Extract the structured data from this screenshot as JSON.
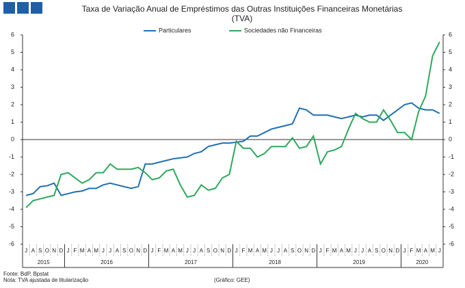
{
  "chart_data": {
    "type": "line",
    "title": "Taxa de Variação Anual de Empréstimos das Outras Instituições Financeiras Monetárias",
    "subtitle": "(TVA)",
    "categories": [
      "J",
      "A",
      "S",
      "O",
      "N",
      "D",
      "J",
      "F",
      "M",
      "A",
      "M",
      "J",
      "J",
      "A",
      "S",
      "O",
      "N",
      "D",
      "J",
      "F",
      "M",
      "A",
      "M",
      "J",
      "J",
      "A",
      "S",
      "O",
      "N",
      "D",
      "J",
      "F",
      "M",
      "A",
      "M",
      "J",
      "J",
      "A",
      "S",
      "O",
      "N",
      "D",
      "J",
      "F",
      "M",
      "A",
      "M",
      "J",
      "J",
      "A",
      "S",
      "O",
      "N",
      "D",
      "J",
      "F",
      "M",
      "A",
      "M",
      "J"
    ],
    "years": [
      "2015",
      "2016",
      "2017",
      "2018",
      "2019",
      "2020"
    ],
    "series": [
      {
        "name": "Particulares",
        "color": "#1f6fb2",
        "values": [
          -3.2,
          -3.1,
          -2.7,
          -2.65,
          -2.5,
          -3.2,
          -3.1,
          -3.0,
          -2.95,
          -2.8,
          -2.8,
          -2.6,
          -2.5,
          -2.6,
          -2.7,
          -2.8,
          -2.7,
          -1.4,
          -1.4,
          -1.3,
          -1.2,
          -1.1,
          -1.05,
          -1.0,
          -0.8,
          -0.7,
          -0.4,
          -0.3,
          -0.2,
          -0.2,
          -0.15,
          -0.1,
          0.2,
          0.2,
          0.4,
          0.6,
          0.7,
          0.8,
          0.9,
          1.8,
          1.7,
          1.4,
          1.4,
          1.4,
          1.3,
          1.2,
          1.3,
          1.4,
          1.3,
          1.4,
          1.4,
          1.1,
          1.4,
          1.7,
          2.0,
          2.1,
          1.8,
          1.7,
          1.7,
          1.5
        ]
      },
      {
        "name": "Sociedades não Financeiras",
        "color": "#2ca85a",
        "values": [
          -3.9,
          -3.5,
          -3.4,
          -3.3,
          -3.2,
          -2.0,
          -1.9,
          -2.2,
          -2.5,
          -2.3,
          -1.9,
          -1.9,
          -1.4,
          -1.7,
          -1.7,
          -1.7,
          -1.6,
          -1.9,
          -2.3,
          -2.2,
          -1.8,
          -1.7,
          -2.6,
          -3.3,
          -3.2,
          -2.6,
          -2.9,
          -2.8,
          -2.2,
          -2.0,
          -0.1,
          -0.5,
          -0.5,
          -1.0,
          -0.8,
          -0.4,
          -0.4,
          -0.4,
          0.1,
          -0.5,
          -0.4,
          0.2,
          -1.4,
          -0.7,
          -0.6,
          -0.4,
          0.6,
          1.5,
          1.2,
          1.0,
          1.0,
          1.7,
          1.1,
          0.4,
          0.4,
          0.0,
          1.6,
          2.5,
          4.8,
          5.6
        ]
      }
    ],
    "ylim": [
      -6,
      6
    ],
    "yticks": [
      -6,
      -5,
      -4,
      -3,
      -2,
      -1,
      0,
      1,
      2,
      3,
      4,
      5,
      6
    ],
    "grid": false,
    "source": "Fonte: BdP, Bpstat",
    "note": "Nota: TVA ajustada de titularização",
    "credit": "(Gráfico: GEE)"
  }
}
